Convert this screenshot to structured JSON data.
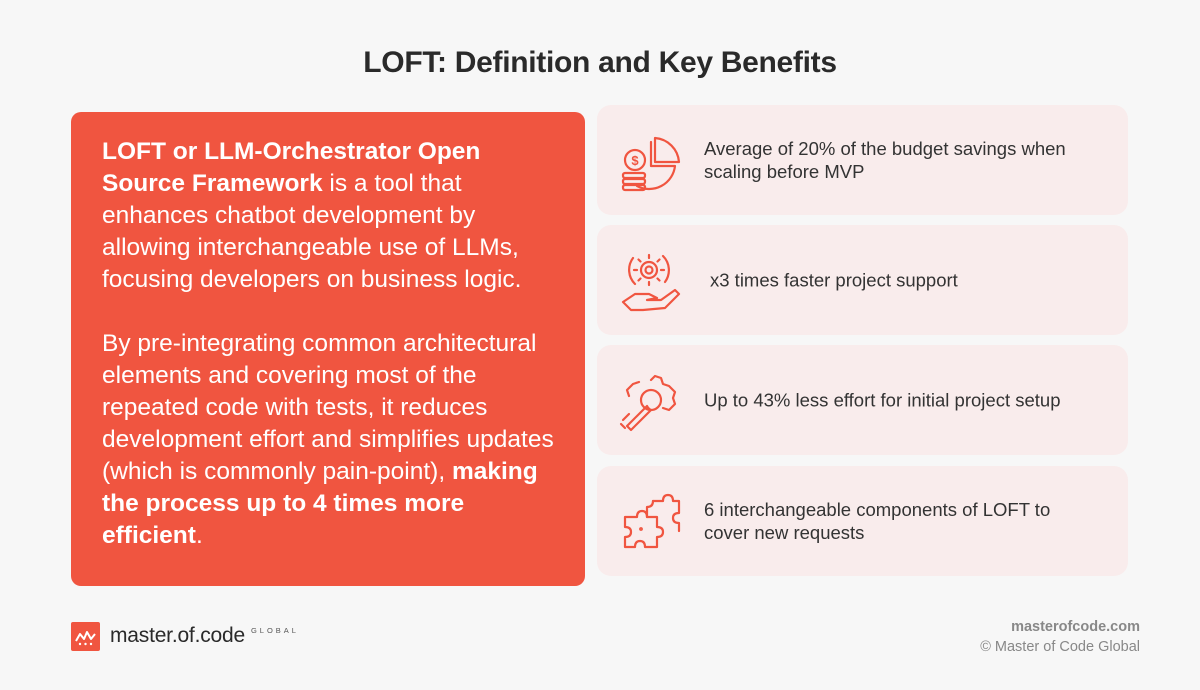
{
  "title": "LOFT: Definition and Key Benefits",
  "intro": {
    "p1_bold": "LOFT or LLM-Orchestrator Open Source Framework",
    "p1_rest": " is a tool that enhances chatbot development by allowing interchangeable use of LLMs, focusing developers on business logic.",
    "p2_start": "By pre-integrating common architectural elements and covering most of the repeated code with tests, it reduces development effort and simplifies updates (which is commonly pain-point), ",
    "p2_bold": "making the process up to 4 times more efficient",
    "p2_end": "."
  },
  "benefits": [
    {
      "icon": "budget-savings-icon",
      "text": "Average of 20% of the budget savings when scaling before MVP"
    },
    {
      "icon": "gear-hand-icon",
      "text": "x3 times faster project support"
    },
    {
      "icon": "wrench-gear-icon",
      "text": "Up to 43% less effort for initial project setup"
    },
    {
      "icon": "puzzle-icon",
      "text": "6 interchangeable components of LOFT to cover new requests"
    }
  ],
  "footer": {
    "logo_word": "master.of.code",
    "logo_sub": "GLOBAL",
    "site": "masterofcode.com",
    "copyright": "© Master of Code Global"
  },
  "colors": {
    "accent": "#f05540",
    "card": "#f9ecec",
    "background": "#f7f7f7"
  }
}
